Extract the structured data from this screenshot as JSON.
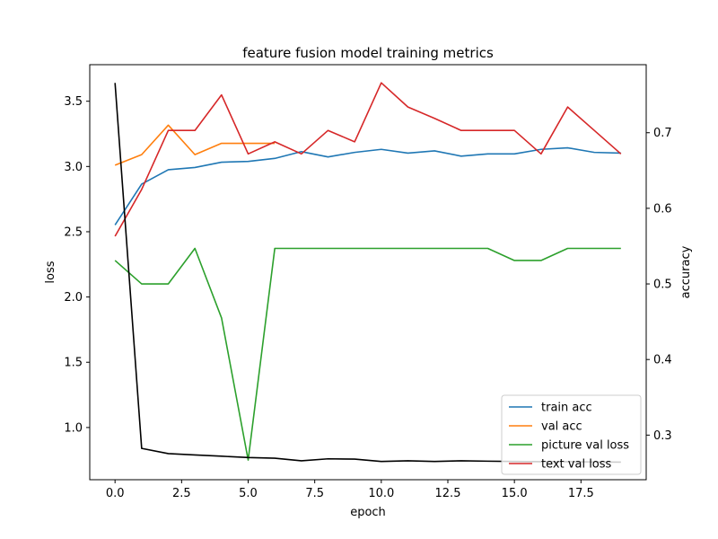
{
  "chart_data": {
    "type": "line",
    "title": "feature fusion model training metrics",
    "xlabel": "epoch",
    "ylabel_left": "loss",
    "ylabel_right": "accuracy",
    "xlim": [
      -0.95,
      19.95
    ],
    "ylim_left": [
      0.6,
      3.78
    ],
    "ylim_right": [
      0.241,
      0.79
    ],
    "x_ticks": [
      0.0,
      2.5,
      5.0,
      7.5,
      10.0,
      12.5,
      15.0,
      17.5
    ],
    "x_tick_labels": [
      "0.0",
      "2.5",
      "5.0",
      "7.5",
      "10.0",
      "12.5",
      "15.0",
      "17.5"
    ],
    "y_left_ticks": [
      1.0,
      1.5,
      2.0,
      2.5,
      3.0,
      3.5
    ],
    "y_left_tick_labels": [
      "1.0",
      "1.5",
      "2.0",
      "2.5",
      "3.0",
      "3.5"
    ],
    "y_right_ticks": [
      0.3,
      0.4,
      0.5,
      0.6,
      0.7
    ],
    "y_right_tick_labels": [
      "0.3",
      "0.4",
      "0.5",
      "0.6",
      "0.7"
    ],
    "x": [
      0,
      1,
      2,
      3,
      4,
      5,
      6,
      7,
      8,
      9,
      10,
      11,
      12,
      13,
      14,
      15,
      16,
      17,
      18,
      19
    ],
    "unlabeled_loss_series": {
      "axis": "left",
      "color": "#000000",
      "values": [
        3.64,
        0.84,
        0.8,
        0.79,
        0.78,
        0.77,
        0.765,
        0.745,
        0.76,
        0.758,
        0.74,
        0.745,
        0.74,
        0.745,
        0.742,
        0.74,
        0.738,
        0.738,
        0.736,
        0.735
      ]
    },
    "series": [
      {
        "name": "train acc",
        "axis": "right",
        "color": "#1f77b4",
        "values": [
          0.578,
          0.632,
          0.651,
          0.654,
          0.661,
          0.662,
          0.666,
          0.675,
          0.668,
          0.674,
          0.678,
          0.673,
          0.676,
          0.669,
          0.672,
          0.672,
          0.678,
          0.68,
          0.674,
          0.673
        ]
      },
      {
        "name": "val acc",
        "axis": "right",
        "color": "#ff7f0e",
        "values": [
          0.657,
          0.671,
          0.71,
          0.671,
          0.686,
          0.686,
          0.686,
          null,
          null,
          null,
          null,
          null,
          null,
          null,
          null,
          null,
          null,
          null,
          null,
          null
        ]
      },
      {
        "name": "picture val loss",
        "axis": "right",
        "color": "#2ca02c",
        "values": [
          0.531,
          0.5,
          0.5,
          0.547,
          0.455,
          0.267,
          0.547,
          0.547,
          0.547,
          0.547,
          0.547,
          0.547,
          0.547,
          0.547,
          0.547,
          0.531,
          0.531,
          0.547,
          0.547,
          0.547
        ]
      },
      {
        "name": "text val loss",
        "axis": "right",
        "color": "#d62728",
        "values": [
          0.563,
          0.625,
          0.703,
          0.703,
          0.75,
          0.672,
          0.688,
          0.672,
          0.703,
          0.688,
          0.766,
          0.734,
          0.719,
          0.703,
          0.703,
          0.703,
          0.672,
          0.734,
          0.703,
          0.672
        ]
      }
    ],
    "legend_position": "lower-right",
    "grid": false
  }
}
